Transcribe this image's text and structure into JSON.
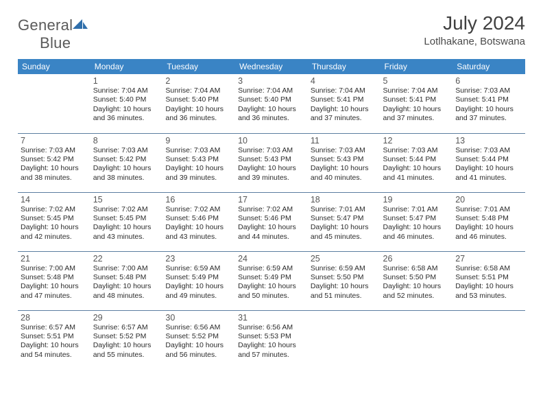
{
  "branding": {
    "logo_word1": "General",
    "logo_word2": "Blue",
    "logo_text_color": "#5a5a5a",
    "logo_accent_color": "#2f6fab"
  },
  "header": {
    "title": "July 2024",
    "location": "Lotlhakane, Botswana"
  },
  "styling": {
    "header_bg": "#3a84c5",
    "header_text_color": "#ffffff",
    "rule_color": "#5b7da0",
    "page_bg": "#ffffff",
    "body_text_color": "#2b2b2b",
    "daynum_color": "#555555",
    "daylabel_fontsize": 12,
    "daynum_fontsize": 12.5,
    "info_fontsize": 10.5,
    "title_fontsize": 28,
    "location_fontsize": 15
  },
  "day_labels": [
    "Sunday",
    "Monday",
    "Tuesday",
    "Wednesday",
    "Thursday",
    "Friday",
    "Saturday"
  ],
  "weeks": [
    [
      null,
      {
        "n": "1",
        "sr": "Sunrise: 7:04 AM",
        "ss": "Sunset: 5:40 PM",
        "d1": "Daylight: 10 hours",
        "d2": "and 36 minutes."
      },
      {
        "n": "2",
        "sr": "Sunrise: 7:04 AM",
        "ss": "Sunset: 5:40 PM",
        "d1": "Daylight: 10 hours",
        "d2": "and 36 minutes."
      },
      {
        "n": "3",
        "sr": "Sunrise: 7:04 AM",
        "ss": "Sunset: 5:40 PM",
        "d1": "Daylight: 10 hours",
        "d2": "and 36 minutes."
      },
      {
        "n": "4",
        "sr": "Sunrise: 7:04 AM",
        "ss": "Sunset: 5:41 PM",
        "d1": "Daylight: 10 hours",
        "d2": "and 37 minutes."
      },
      {
        "n": "5",
        "sr": "Sunrise: 7:04 AM",
        "ss": "Sunset: 5:41 PM",
        "d1": "Daylight: 10 hours",
        "d2": "and 37 minutes."
      },
      {
        "n": "6",
        "sr": "Sunrise: 7:03 AM",
        "ss": "Sunset: 5:41 PM",
        "d1": "Daylight: 10 hours",
        "d2": "and 37 minutes."
      }
    ],
    [
      {
        "n": "7",
        "sr": "Sunrise: 7:03 AM",
        "ss": "Sunset: 5:42 PM",
        "d1": "Daylight: 10 hours",
        "d2": "and 38 minutes."
      },
      {
        "n": "8",
        "sr": "Sunrise: 7:03 AM",
        "ss": "Sunset: 5:42 PM",
        "d1": "Daylight: 10 hours",
        "d2": "and 38 minutes."
      },
      {
        "n": "9",
        "sr": "Sunrise: 7:03 AM",
        "ss": "Sunset: 5:43 PM",
        "d1": "Daylight: 10 hours",
        "d2": "and 39 minutes."
      },
      {
        "n": "10",
        "sr": "Sunrise: 7:03 AM",
        "ss": "Sunset: 5:43 PM",
        "d1": "Daylight: 10 hours",
        "d2": "and 39 minutes."
      },
      {
        "n": "11",
        "sr": "Sunrise: 7:03 AM",
        "ss": "Sunset: 5:43 PM",
        "d1": "Daylight: 10 hours",
        "d2": "and 40 minutes."
      },
      {
        "n": "12",
        "sr": "Sunrise: 7:03 AM",
        "ss": "Sunset: 5:44 PM",
        "d1": "Daylight: 10 hours",
        "d2": "and 41 minutes."
      },
      {
        "n": "13",
        "sr": "Sunrise: 7:03 AM",
        "ss": "Sunset: 5:44 PM",
        "d1": "Daylight: 10 hours",
        "d2": "and 41 minutes."
      }
    ],
    [
      {
        "n": "14",
        "sr": "Sunrise: 7:02 AM",
        "ss": "Sunset: 5:45 PM",
        "d1": "Daylight: 10 hours",
        "d2": "and 42 minutes."
      },
      {
        "n": "15",
        "sr": "Sunrise: 7:02 AM",
        "ss": "Sunset: 5:45 PM",
        "d1": "Daylight: 10 hours",
        "d2": "and 43 minutes."
      },
      {
        "n": "16",
        "sr": "Sunrise: 7:02 AM",
        "ss": "Sunset: 5:46 PM",
        "d1": "Daylight: 10 hours",
        "d2": "and 43 minutes."
      },
      {
        "n": "17",
        "sr": "Sunrise: 7:02 AM",
        "ss": "Sunset: 5:46 PM",
        "d1": "Daylight: 10 hours",
        "d2": "and 44 minutes."
      },
      {
        "n": "18",
        "sr": "Sunrise: 7:01 AM",
        "ss": "Sunset: 5:47 PM",
        "d1": "Daylight: 10 hours",
        "d2": "and 45 minutes."
      },
      {
        "n": "19",
        "sr": "Sunrise: 7:01 AM",
        "ss": "Sunset: 5:47 PM",
        "d1": "Daylight: 10 hours",
        "d2": "and 46 minutes."
      },
      {
        "n": "20",
        "sr": "Sunrise: 7:01 AM",
        "ss": "Sunset: 5:48 PM",
        "d1": "Daylight: 10 hours",
        "d2": "and 46 minutes."
      }
    ],
    [
      {
        "n": "21",
        "sr": "Sunrise: 7:00 AM",
        "ss": "Sunset: 5:48 PM",
        "d1": "Daylight: 10 hours",
        "d2": "and 47 minutes."
      },
      {
        "n": "22",
        "sr": "Sunrise: 7:00 AM",
        "ss": "Sunset: 5:48 PM",
        "d1": "Daylight: 10 hours",
        "d2": "and 48 minutes."
      },
      {
        "n": "23",
        "sr": "Sunrise: 6:59 AM",
        "ss": "Sunset: 5:49 PM",
        "d1": "Daylight: 10 hours",
        "d2": "and 49 minutes."
      },
      {
        "n": "24",
        "sr": "Sunrise: 6:59 AM",
        "ss": "Sunset: 5:49 PM",
        "d1": "Daylight: 10 hours",
        "d2": "and 50 minutes."
      },
      {
        "n": "25",
        "sr": "Sunrise: 6:59 AM",
        "ss": "Sunset: 5:50 PM",
        "d1": "Daylight: 10 hours",
        "d2": "and 51 minutes."
      },
      {
        "n": "26",
        "sr": "Sunrise: 6:58 AM",
        "ss": "Sunset: 5:50 PM",
        "d1": "Daylight: 10 hours",
        "d2": "and 52 minutes."
      },
      {
        "n": "27",
        "sr": "Sunrise: 6:58 AM",
        "ss": "Sunset: 5:51 PM",
        "d1": "Daylight: 10 hours",
        "d2": "and 53 minutes."
      }
    ],
    [
      {
        "n": "28",
        "sr": "Sunrise: 6:57 AM",
        "ss": "Sunset: 5:51 PM",
        "d1": "Daylight: 10 hours",
        "d2": "and 54 minutes."
      },
      {
        "n": "29",
        "sr": "Sunrise: 6:57 AM",
        "ss": "Sunset: 5:52 PM",
        "d1": "Daylight: 10 hours",
        "d2": "and 55 minutes."
      },
      {
        "n": "30",
        "sr": "Sunrise: 6:56 AM",
        "ss": "Sunset: 5:52 PM",
        "d1": "Daylight: 10 hours",
        "d2": "and 56 minutes."
      },
      {
        "n": "31",
        "sr": "Sunrise: 6:56 AM",
        "ss": "Sunset: 5:53 PM",
        "d1": "Daylight: 10 hours",
        "d2": "and 57 minutes."
      },
      null,
      null,
      null
    ]
  ]
}
